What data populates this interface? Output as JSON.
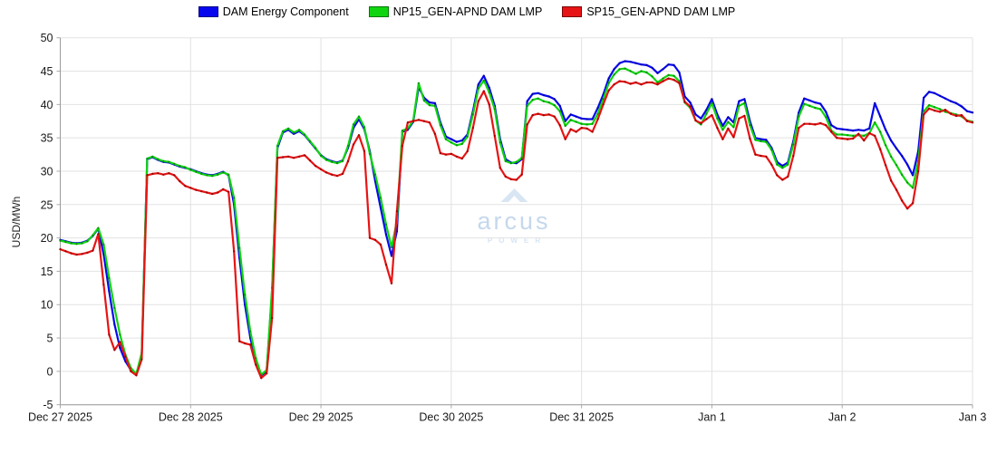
{
  "watermark": {
    "brand": "arcus",
    "subtext": "POWER"
  },
  "chart_data": {
    "type": "line",
    "title": "",
    "ylabel": "USD/MWh",
    "ylim": [
      -5,
      50
    ],
    "y_ticks": [
      50,
      45,
      40,
      35,
      30,
      25,
      20,
      15,
      10,
      5,
      0,
      -5
    ],
    "hours_total": 168,
    "x_start": "Dec 27 2025 00:00",
    "x_resolution": "hourly",
    "grid": true,
    "legend_position": "top-center",
    "x_ticks": [
      {
        "label": "Dec 27 2025",
        "hour": 0
      },
      {
        "label": "Dec 28 2025",
        "hour": 24
      },
      {
        "label": "Dec 29 2025",
        "hour": 48
      },
      {
        "label": "Dec 30 2025",
        "hour": 72
      },
      {
        "label": "Dec 31 2025",
        "hour": 96
      },
      {
        "label": "Jan 1",
        "hour": 120
      },
      {
        "label": "Jan 2",
        "hour": 144
      },
      {
        "label": "Jan 3",
        "hour": 168
      }
    ],
    "series": [
      {
        "name": "DAM Energy Component",
        "short": "dam-energy-component",
        "color": "#0707ee",
        "edge": "#000088",
        "marker": "#0000aa",
        "values": [
          19.7,
          19.5,
          19.3,
          19.2,
          19.3,
          19.6,
          20.3,
          21.4,
          17.5,
          12.0,
          7.0,
          3.5,
          1.5,
          0.2,
          -0.5,
          2.5,
          31.8,
          32.1,
          31.7,
          31.4,
          31.3,
          31.0,
          30.7,
          30.5,
          30.3,
          30.0,
          29.7,
          29.5,
          29.4,
          29.6,
          29.9,
          29.4,
          25.0,
          17.0,
          10.0,
          5.0,
          1.5,
          -0.6,
          0.0,
          12.0,
          33.5,
          35.8,
          36.2,
          35.6,
          36.0,
          35.4,
          34.4,
          33.4,
          32.4,
          31.8,
          31.5,
          31.3,
          31.6,
          33.5,
          36.5,
          37.8,
          36.3,
          33.0,
          28.5,
          24.5,
          20.5,
          17.3,
          21.0,
          35.9,
          36.2,
          37.4,
          42.6,
          41.0,
          40.3,
          40.2,
          37.3,
          35.2,
          34.8,
          34.4,
          34.6,
          35.5,
          39.0,
          43.0,
          44.3,
          42.5,
          39.8,
          34.8,
          31.8,
          31.3,
          31.2,
          31.8,
          40.5,
          41.6,
          41.7,
          41.4,
          41.2,
          40.8,
          39.8,
          37.5,
          38.5,
          38.2,
          37.9,
          37.8,
          37.8,
          39.5,
          41.5,
          43.9,
          45.3,
          46.2,
          46.5,
          46.4,
          46.2,
          46.0,
          45.9,
          45.5,
          44.7,
          45.3,
          46.0,
          45.9,
          44.8,
          41.2,
          40.3,
          38.5,
          37.9,
          39.2,
          40.8,
          38.5,
          36.8,
          38.1,
          37.3,
          40.5,
          40.8,
          37.5,
          35.0,
          34.8,
          34.7,
          33.5,
          31.4,
          30.8,
          31.3,
          34.5,
          38.8,
          40.9,
          40.6,
          40.3,
          40.1,
          38.9,
          36.9,
          36.4,
          36.3,
          36.2,
          36.1,
          36.2,
          36.1,
          36.4,
          40.2,
          38.2,
          36.2,
          34.6,
          33.4,
          32.3,
          31.0,
          29.4,
          33.0,
          41.0,
          41.9,
          41.7,
          41.3,
          40.9,
          40.5,
          40.2,
          39.7,
          39.0,
          38.8
        ]
      },
      {
        "name": "NP15_GEN-APND DAM LMP",
        "short": "np15-gen-apnd-dam-lmp",
        "color": "#10d410",
        "edge": "#067806",
        "marker": "#089008",
        "values": [
          19.6,
          19.4,
          19.2,
          19.1,
          19.2,
          19.5,
          20.4,
          21.5,
          19.0,
          14.0,
          9.5,
          5.5,
          2.5,
          0.5,
          -0.4,
          2.8,
          31.9,
          32.2,
          31.8,
          31.5,
          31.4,
          31.1,
          30.8,
          30.6,
          30.2,
          29.9,
          29.6,
          29.4,
          29.3,
          29.5,
          29.8,
          29.5,
          26.0,
          18.5,
          11.5,
          6.0,
          2.0,
          -0.5,
          0.2,
          12.5,
          33.8,
          36.0,
          36.4,
          35.8,
          36.2,
          35.5,
          34.5,
          33.5,
          32.3,
          31.7,
          31.4,
          31.2,
          31.5,
          33.8,
          37.0,
          38.2,
          36.6,
          32.6,
          29.5,
          26.0,
          22.0,
          18.6,
          22.5,
          36.1,
          36.4,
          37.6,
          43.2,
          40.6,
          39.9,
          39.8,
          36.9,
          34.8,
          34.3,
          33.9,
          34.1,
          35.2,
          38.5,
          42.4,
          43.6,
          41.8,
          39.3,
          34.3,
          31.5,
          31.2,
          31.4,
          32.0,
          39.8,
          40.7,
          40.9,
          40.5,
          40.3,
          39.9,
          39.0,
          36.8,
          37.7,
          37.4,
          37.1,
          37.0,
          37.1,
          38.6,
          40.8,
          43.2,
          44.5,
          45.3,
          45.4,
          45.0,
          44.6,
          45.0,
          44.8,
          44.2,
          43.3,
          43.9,
          44.4,
          44.3,
          43.5,
          40.3,
          39.5,
          37.6,
          37.0,
          38.6,
          40.2,
          37.9,
          36.2,
          37.4,
          36.6,
          39.8,
          40.2,
          36.9,
          34.7,
          34.5,
          34.4,
          33.2,
          31.0,
          30.5,
          31.0,
          34.0,
          38.2,
          40.1,
          39.8,
          39.5,
          39.3,
          38.1,
          36.1,
          35.5,
          35.5,
          35.4,
          35.3,
          35.4,
          35.3,
          35.7,
          37.3,
          35.9,
          33.9,
          32.2,
          30.9,
          29.5,
          28.3,
          27.5,
          31.5,
          39.0,
          39.9,
          39.6,
          39.3,
          38.9,
          38.7,
          38.5,
          38.2,
          37.6,
          37.4
        ]
      },
      {
        "name": "SP15_GEN-APND DAM LMP",
        "short": "sp15-gen-apnd-dam-lmp",
        "color": "#e61414",
        "edge": "#7a0606",
        "marker": "#990000",
        "values": [
          18.3,
          18.0,
          17.7,
          17.5,
          17.6,
          17.8,
          18.1,
          20.6,
          13.0,
          5.5,
          3.2,
          4.4,
          2.2,
          0.0,
          -0.6,
          1.8,
          29.4,
          29.6,
          29.7,
          29.5,
          29.7,
          29.4,
          28.5,
          27.8,
          27.5,
          27.2,
          27.0,
          26.8,
          26.6,
          26.8,
          27.3,
          26.9,
          18.0,
          4.5,
          4.2,
          4.0,
          1.0,
          -1.0,
          -0.3,
          8.0,
          32.0,
          32.1,
          32.2,
          32.0,
          32.2,
          32.4,
          31.6,
          30.8,
          30.3,
          29.8,
          29.5,
          29.3,
          29.6,
          31.5,
          34.0,
          35.4,
          33.0,
          20.0,
          19.7,
          19.0,
          16.0,
          13.2,
          24.0,
          33.8,
          37.3,
          37.5,
          37.7,
          37.5,
          37.3,
          35.6,
          32.7,
          32.5,
          32.6,
          32.2,
          31.9,
          33.0,
          36.5,
          40.5,
          42.0,
          40.0,
          35.3,
          30.5,
          29.2,
          28.8,
          28.7,
          29.5,
          37.0,
          38.4,
          38.6,
          38.4,
          38.5,
          38.2,
          36.9,
          34.8,
          36.3,
          35.9,
          36.5,
          36.4,
          35.9,
          37.8,
          40.0,
          42.1,
          43.0,
          43.5,
          43.4,
          43.1,
          43.3,
          43.0,
          43.3,
          43.3,
          43.0,
          43.5,
          43.9,
          43.7,
          43.2,
          40.4,
          39.7,
          37.6,
          37.2,
          37.8,
          38.4,
          36.5,
          34.8,
          36.4,
          35.1,
          37.9,
          38.3,
          34.9,
          32.5,
          32.3,
          32.2,
          31.0,
          29.4,
          28.7,
          29.2,
          32.3,
          36.5,
          37.1,
          37.1,
          37.0,
          37.2,
          36.9,
          35.9,
          35.0,
          34.9,
          34.8,
          34.9,
          35.6,
          34.6,
          35.7,
          35.3,
          33.3,
          30.9,
          28.6,
          27.2,
          25.6,
          24.4,
          25.2,
          30.0,
          38.5,
          39.4,
          39.1,
          38.9,
          39.2,
          38.6,
          38.3,
          38.4,
          37.5,
          37.3
        ]
      }
    ]
  }
}
